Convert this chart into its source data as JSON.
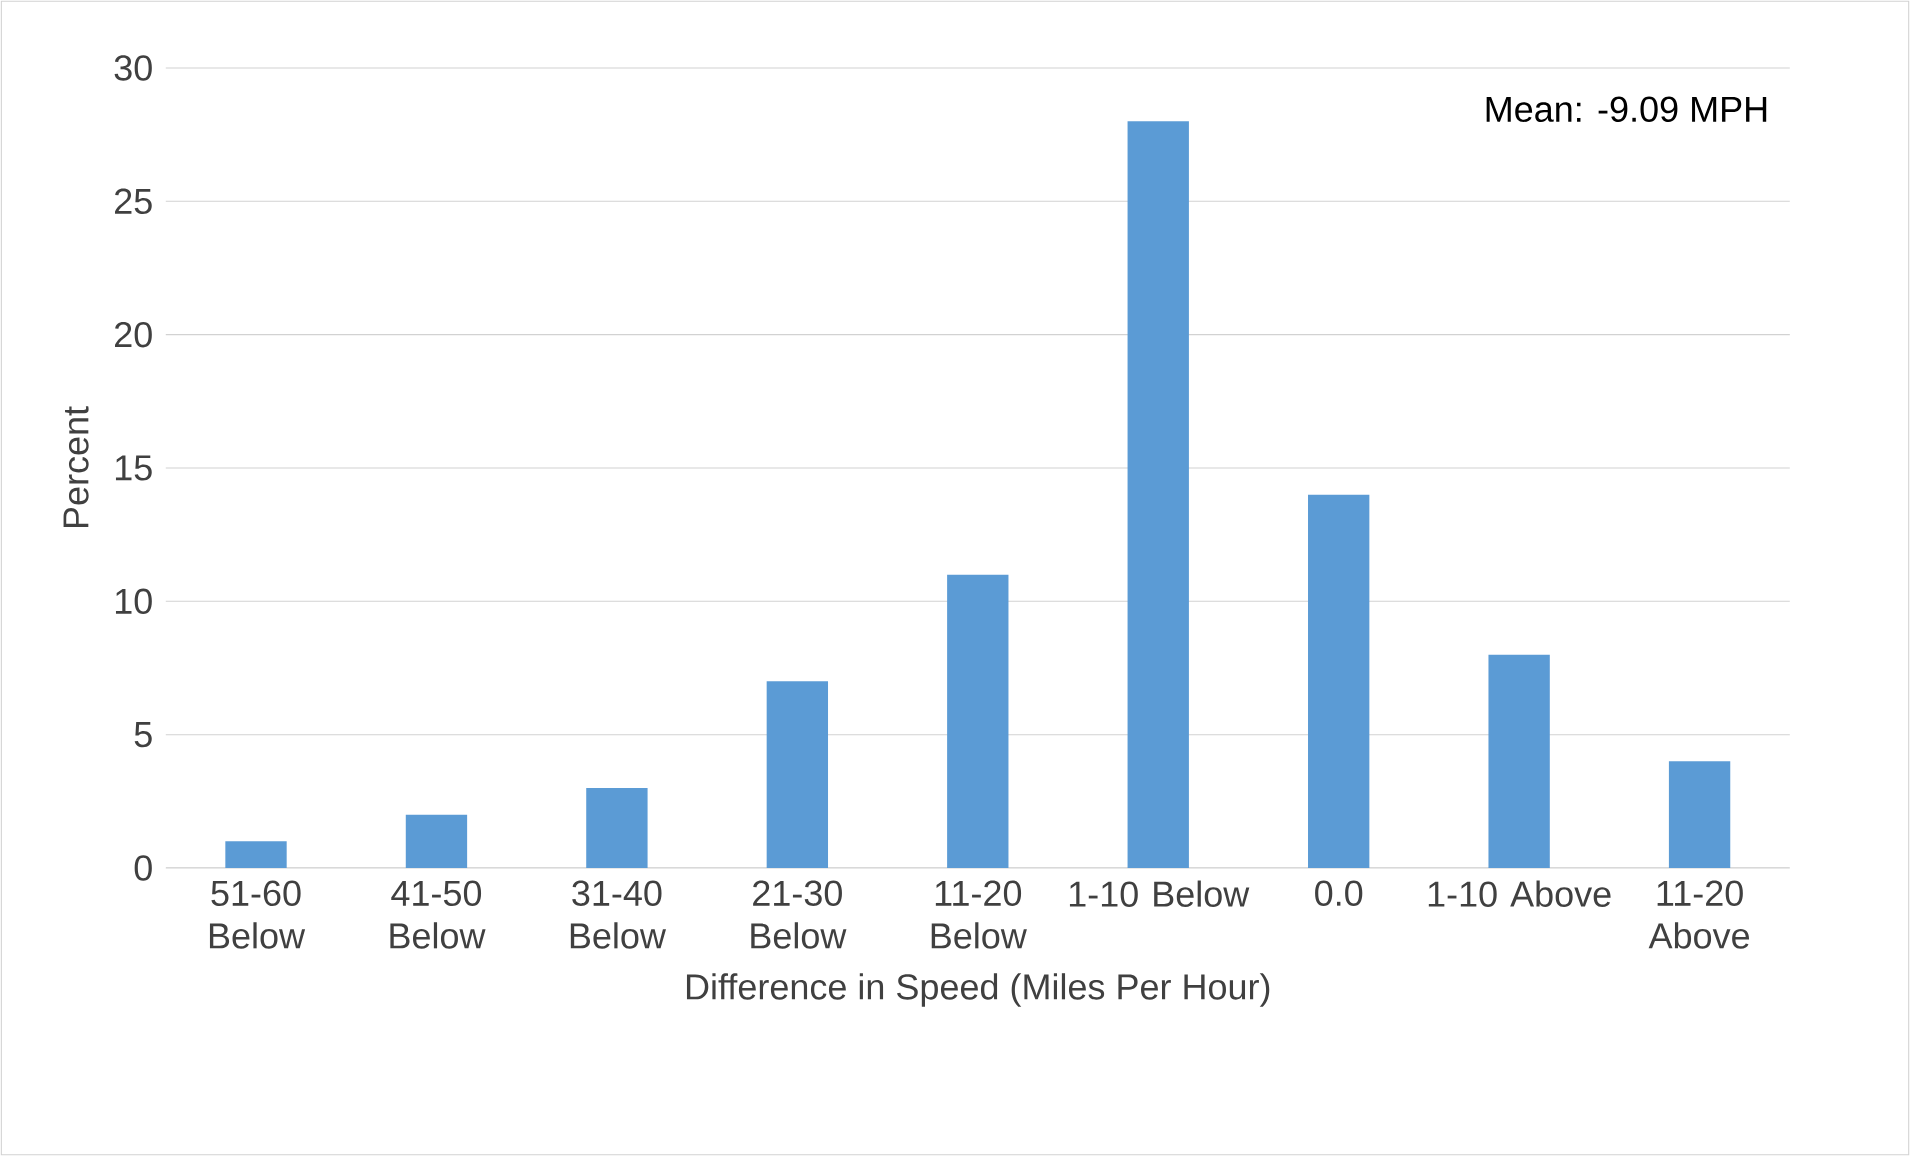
{
  "chart_data": {
    "type": "bar",
    "xlabel": "Difference in Speed (Miles Per Hour)",
    "ylabel": "Percent",
    "categories": [
      "51-60 Below",
      "41-50 Below",
      "31-40 Below",
      "21-30 Below",
      "11-20 Below",
      "1-10 Below",
      "0.0",
      "1-10 Above",
      "11-20 Above"
    ],
    "values": [
      1,
      2,
      3,
      7,
      11,
      28,
      14,
      8,
      4
    ],
    "color": "#5b9bd5",
    "ylim": [
      0,
      30
    ],
    "yticks": [
      0,
      5,
      10,
      15,
      20,
      25,
      30
    ],
    "grid": "y",
    "annotations": [
      "Mean: -9.09 MPH"
    ]
  }
}
